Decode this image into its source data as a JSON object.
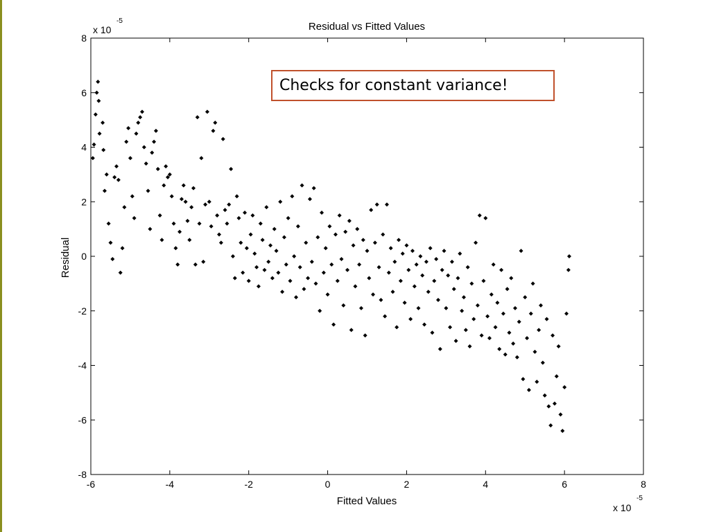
{
  "colors": {
    "accent_bar": "#8a8f1f",
    "point_color": "#000000",
    "callout_border": "#c0502b"
  },
  "chart_data": {
    "type": "scatter",
    "title": "Residual vs Fitted Values",
    "xlabel": "Fitted Values",
    "ylabel": "Residual",
    "x_exponent_label": "x 10",
    "x_exponent": "-5",
    "y_exponent_label": "x 10",
    "y_exponent": "-5",
    "xlim": [
      -6,
      8
    ],
    "ylim": [
      -8,
      8
    ],
    "x_ticks": [
      "-6",
      "-4",
      "-2",
      "0",
      "2",
      "4",
      "6",
      "8"
    ],
    "y_ticks": [
      "8",
      "6",
      "4",
      "2",
      "0",
      "-2",
      "-4",
      "-6",
      "-8"
    ],
    "grid": false,
    "marker": "diamond",
    "annotation": "Checks for constant variance!",
    "points": [
      [
        -5.95,
        3.6
      ],
      [
        -5.92,
        4.1
      ],
      [
        -5.88,
        5.2
      ],
      [
        -5.85,
        6.0
      ],
      [
        -5.82,
        6.4
      ],
      [
        -5.8,
        5.7
      ],
      [
        -5.78,
        4.5
      ],
      [
        -5.7,
        4.9
      ],
      [
        -5.68,
        3.9
      ],
      [
        -5.65,
        2.4
      ],
      [
        -5.6,
        3.0
      ],
      [
        -5.55,
        1.2
      ],
      [
        -5.5,
        0.5
      ],
      [
        -5.45,
        -0.1
      ],
      [
        -5.4,
        2.9
      ],
      [
        -5.35,
        3.3
      ],
      [
        -5.3,
        2.8
      ],
      [
        -5.25,
        -0.6
      ],
      [
        -5.2,
        0.3
      ],
      [
        -5.15,
        1.8
      ],
      [
        -5.1,
        4.2
      ],
      [
        -5.05,
        4.7
      ],
      [
        -5.0,
        3.6
      ],
      [
        -4.95,
        2.2
      ],
      [
        -4.9,
        1.4
      ],
      [
        -4.85,
        4.5
      ],
      [
        -4.8,
        4.9
      ],
      [
        -4.75,
        5.1
      ],
      [
        -4.7,
        5.3
      ],
      [
        -4.65,
        4.0
      ],
      [
        -4.6,
        3.4
      ],
      [
        -4.55,
        2.4
      ],
      [
        -4.5,
        1.0
      ],
      [
        -4.45,
        3.8
      ],
      [
        -4.4,
        4.2
      ],
      [
        -4.35,
        4.6
      ],
      [
        -4.3,
        3.2
      ],
      [
        -4.25,
        1.5
      ],
      [
        -4.2,
        0.6
      ],
      [
        -4.15,
        2.6
      ],
      [
        -4.1,
        3.3
      ],
      [
        -4.05,
        2.9
      ],
      [
        -4.0,
        3.0
      ],
      [
        -3.95,
        2.2
      ],
      [
        -3.9,
        1.2
      ],
      [
        -3.85,
        0.3
      ],
      [
        -3.8,
        -0.3
      ],
      [
        -3.75,
        0.9
      ],
      [
        -3.7,
        2.1
      ],
      [
        -3.65,
        2.6
      ],
      [
        -3.6,
        2.0
      ],
      [
        -3.55,
        1.3
      ],
      [
        -3.5,
        0.6
      ],
      [
        -3.45,
        1.8
      ],
      [
        -3.4,
        2.5
      ],
      [
        -3.35,
        -0.3
      ],
      [
        -3.3,
        5.1
      ],
      [
        -3.25,
        1.2
      ],
      [
        -3.2,
        3.6
      ],
      [
        -3.15,
        -0.2
      ],
      [
        -3.1,
        1.9
      ],
      [
        -3.05,
        5.3
      ],
      [
        -3.0,
        2.0
      ],
      [
        -2.95,
        1.1
      ],
      [
        -2.9,
        4.6
      ],
      [
        -2.85,
        4.9
      ],
      [
        -2.8,
        1.5
      ],
      [
        -2.75,
        0.8
      ],
      [
        -2.7,
        0.5
      ],
      [
        -2.65,
        4.3
      ],
      [
        -2.6,
        1.7
      ],
      [
        -2.55,
        1.2
      ],
      [
        -2.5,
        1.9
      ],
      [
        -2.45,
        3.2
      ],
      [
        -2.4,
        0.0
      ],
      [
        -2.35,
        -0.8
      ],
      [
        -2.3,
        2.2
      ],
      [
        -2.25,
        1.4
      ],
      [
        -2.2,
        0.5
      ],
      [
        -2.15,
        -0.6
      ],
      [
        -2.1,
        1.6
      ],
      [
        -2.05,
        0.3
      ],
      [
        -2.0,
        -0.9
      ],
      [
        -1.95,
        0.8
      ],
      [
        -1.9,
        1.5
      ],
      [
        -1.85,
        0.1
      ],
      [
        -1.8,
        -0.4
      ],
      [
        -1.75,
        -1.1
      ],
      [
        -1.7,
        1.2
      ],
      [
        -1.65,
        0.6
      ],
      [
        -1.6,
        -0.5
      ],
      [
        -1.55,
        1.8
      ],
      [
        -1.5,
        -0.2
      ],
      [
        -1.45,
        0.4
      ],
      [
        -1.4,
        -0.8
      ],
      [
        -1.35,
        1.0
      ],
      [
        -1.3,
        0.2
      ],
      [
        -1.25,
        -0.6
      ],
      [
        -1.2,
        2.0
      ],
      [
        -1.15,
        -1.3
      ],
      [
        -1.1,
        0.7
      ],
      [
        -1.05,
        -0.3
      ],
      [
        -1.0,
        1.4
      ],
      [
        -0.95,
        -0.9
      ],
      [
        -0.9,
        2.2
      ],
      [
        -0.85,
        0.0
      ],
      [
        -0.8,
        -1.5
      ],
      [
        -0.75,
        1.1
      ],
      [
        -0.7,
        -0.4
      ],
      [
        -0.65,
        2.6
      ],
      [
        -0.6,
        -1.2
      ],
      [
        -0.55,
        0.5
      ],
      [
        -0.5,
        -0.8
      ],
      [
        -0.45,
        2.1
      ],
      [
        -0.4,
        -0.2
      ],
      [
        -0.35,
        2.5
      ],
      [
        -0.3,
        -1.0
      ],
      [
        -0.25,
        0.7
      ],
      [
        -0.2,
        -2.0
      ],
      [
        -0.15,
        1.6
      ],
      [
        -0.1,
        -0.6
      ],
      [
        -0.05,
        0.3
      ],
      [
        0.0,
        -1.4
      ],
      [
        0.05,
        1.1
      ],
      [
        0.1,
        -0.3
      ],
      [
        0.15,
        -2.5
      ],
      [
        0.2,
        0.8
      ],
      [
        0.25,
        -0.9
      ],
      [
        0.3,
        1.5
      ],
      [
        0.35,
        -0.1
      ],
      [
        0.4,
        -1.8
      ],
      [
        0.45,
        0.9
      ],
      [
        0.5,
        -0.5
      ],
      [
        0.55,
        1.3
      ],
      [
        0.6,
        -2.7
      ],
      [
        0.65,
        0.4
      ],
      [
        0.7,
        -1.1
      ],
      [
        0.75,
        1.0
      ],
      [
        0.8,
        -0.3
      ],
      [
        0.85,
        -1.9
      ],
      [
        0.9,
        0.6
      ],
      [
        0.95,
        -2.9
      ],
      [
        1.0,
        0.2
      ],
      [
        1.05,
        -0.8
      ],
      [
        1.1,
        1.7
      ],
      [
        1.15,
        -1.4
      ],
      [
        1.2,
        0.5
      ],
      [
        1.25,
        1.9
      ],
      [
        1.3,
        -0.4
      ],
      [
        1.35,
        -1.6
      ],
      [
        1.4,
        0.8
      ],
      [
        1.45,
        -2.2
      ],
      [
        1.5,
        1.9
      ],
      [
        1.55,
        -0.6
      ],
      [
        1.6,
        0.3
      ],
      [
        1.65,
        -1.3
      ],
      [
        1.7,
        -0.2
      ],
      [
        1.75,
        -2.6
      ],
      [
        1.8,
        0.6
      ],
      [
        1.85,
        -0.9
      ],
      [
        1.9,
        0.1
      ],
      [
        1.95,
        -1.7
      ],
      [
        2.0,
        0.4
      ],
      [
        2.05,
        -0.5
      ],
      [
        2.1,
        -2.3
      ],
      [
        2.15,
        0.2
      ],
      [
        2.2,
        -1.1
      ],
      [
        2.25,
        -0.3
      ],
      [
        2.3,
        -1.9
      ],
      [
        2.35,
        0.0
      ],
      [
        2.4,
        -0.7
      ],
      [
        2.45,
        -2.5
      ],
      [
        2.5,
        -0.2
      ],
      [
        2.55,
        -1.3
      ],
      [
        2.6,
        0.3
      ],
      [
        2.65,
        -2.8
      ],
      [
        2.7,
        -0.9
      ],
      [
        2.75,
        -0.1
      ],
      [
        2.8,
        -1.6
      ],
      [
        2.85,
        -3.4
      ],
      [
        2.9,
        -0.5
      ],
      [
        2.95,
        0.2
      ],
      [
        3.0,
        -1.9
      ],
      [
        3.05,
        -0.7
      ],
      [
        3.1,
        -2.6
      ],
      [
        3.15,
        -0.2
      ],
      [
        3.2,
        -1.2
      ],
      [
        3.25,
        -3.1
      ],
      [
        3.3,
        -0.8
      ],
      [
        3.35,
        0.1
      ],
      [
        3.4,
        -2.0
      ],
      [
        3.45,
        -1.5
      ],
      [
        3.5,
        -2.7
      ],
      [
        3.55,
        -0.4
      ],
      [
        3.6,
        -3.3
      ],
      [
        3.65,
        -1.0
      ],
      [
        3.7,
        -2.3
      ],
      [
        3.75,
        0.5
      ],
      [
        3.8,
        -1.8
      ],
      [
        3.85,
        1.5
      ],
      [
        3.9,
        -2.9
      ],
      [
        3.95,
        -0.9
      ],
      [
        4.0,
        1.4
      ],
      [
        4.05,
        -2.2
      ],
      [
        4.1,
        -3.0
      ],
      [
        4.15,
        -1.4
      ],
      [
        4.2,
        -0.3
      ],
      [
        4.25,
        -2.6
      ],
      [
        4.3,
        -1.7
      ],
      [
        4.35,
        -3.4
      ],
      [
        4.4,
        -0.5
      ],
      [
        4.45,
        -2.1
      ],
      [
        4.5,
        -3.6
      ],
      [
        4.55,
        -1.2
      ],
      [
        4.6,
        -2.8
      ],
      [
        4.65,
        -0.8
      ],
      [
        4.7,
        -3.2
      ],
      [
        4.75,
        -1.9
      ],
      [
        4.8,
        -3.7
      ],
      [
        4.85,
        -2.4
      ],
      [
        4.9,
        0.2
      ],
      [
        4.95,
        -4.5
      ],
      [
        5.0,
        -1.5
      ],
      [
        5.05,
        -3.0
      ],
      [
        5.1,
        -4.9
      ],
      [
        5.15,
        -2.1
      ],
      [
        5.2,
        -1.0
      ],
      [
        5.25,
        -3.5
      ],
      [
        5.3,
        -4.6
      ],
      [
        5.35,
        -2.7
      ],
      [
        5.4,
        -1.8
      ],
      [
        5.45,
        -3.9
      ],
      [
        5.5,
        -5.1
      ],
      [
        5.55,
        -2.3
      ],
      [
        5.6,
        -5.5
      ],
      [
        5.65,
        -6.2
      ],
      [
        5.7,
        -2.9
      ],
      [
        5.75,
        -5.4
      ],
      [
        5.8,
        -4.4
      ],
      [
        5.85,
        -3.3
      ],
      [
        5.9,
        -5.8
      ],
      [
        5.95,
        -6.4
      ],
      [
        6.0,
        -4.8
      ],
      [
        6.05,
        -2.1
      ],
      [
        6.1,
        -0.5
      ],
      [
        6.12,
        0.0
      ]
    ]
  }
}
